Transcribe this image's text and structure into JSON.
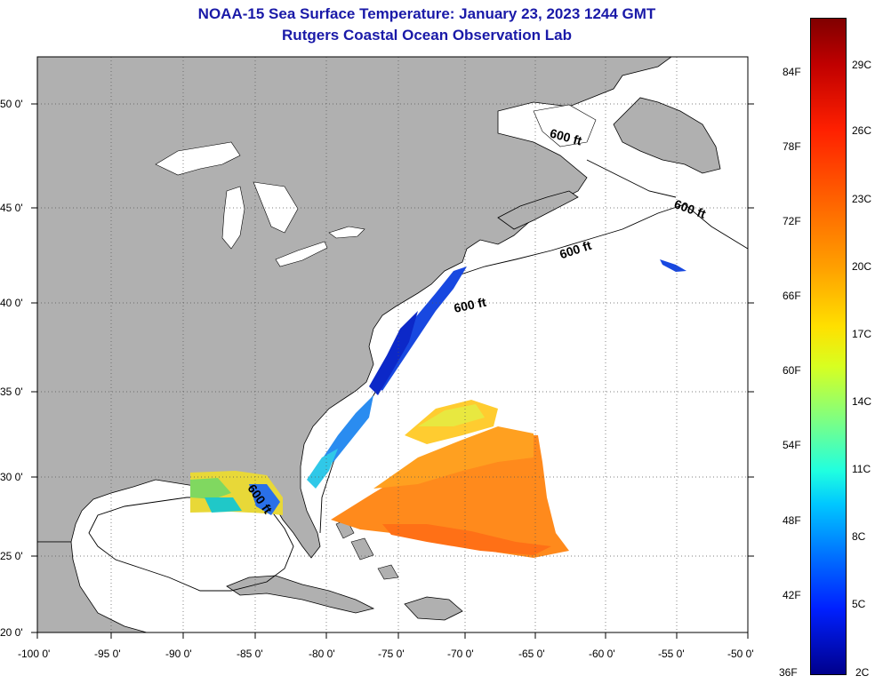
{
  "title_line1": "NOAA-15 Sea Surface Temperature:  January 23, 2023 1244 GMT",
  "title_line2": "Rutgers Coastal Ocean Observation Lab",
  "map": {
    "type": "sea-surface-temperature-map",
    "lon_range": [
      -100,
      -50
    ],
    "lat_range": [
      20,
      52.5
    ],
    "grid": true,
    "lon_ticks": [
      "-100 0'",
      "-95 0'",
      "-90 0'",
      "-85 0'",
      "-80 0'",
      "-75 0'",
      "-70 0'",
      "-65 0'",
      "-60 0'",
      "-55 0'",
      "-50 0'"
    ],
    "lat_ticks": [
      "50 0'",
      "45 0'",
      "40 0'",
      "35 0'",
      "30 0'",
      "25 0'",
      "20 0'"
    ],
    "contour_labels": [
      "600 ft",
      "600 ft",
      "600 ft",
      "600 ft",
      "600 ft"
    ],
    "land_color": "#b0b0b0",
    "ocean_color": "#ffffff"
  },
  "colorbar": {
    "fahrenheit": [
      "84F",
      "78F",
      "72F",
      "66F",
      "60F",
      "54F",
      "48F",
      "42F",
      "36F"
    ],
    "celsius": [
      "29C",
      "26C",
      "23C",
      "20C",
      "17C",
      "14C",
      "11C",
      "8C",
      "5C",
      "2C"
    ],
    "colors": [
      "#800000",
      "#ff2000",
      "#ffa000",
      "#ffe000",
      "#80ff80",
      "#20ffe0",
      "#0070ff",
      "#00008c"
    ]
  }
}
